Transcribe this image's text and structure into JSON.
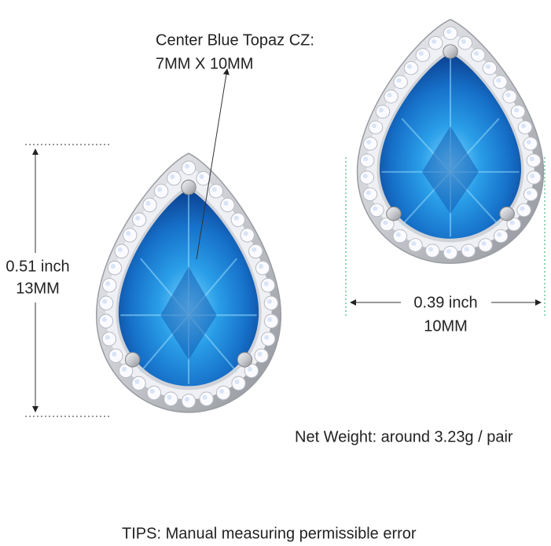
{
  "annotations": {
    "center_stone": {
      "title": "Center Blue Topaz CZ:",
      "size": "7MM X 10MM"
    },
    "height": {
      "inch": "0.51 inch",
      "mm": "13MM"
    },
    "width": {
      "inch": "0.39 inch",
      "mm": "10MM"
    },
    "weight": "Net Weight: around 3.23g / pair",
    "tips": "TIPS: Manual measuring permissible error"
  }
}
